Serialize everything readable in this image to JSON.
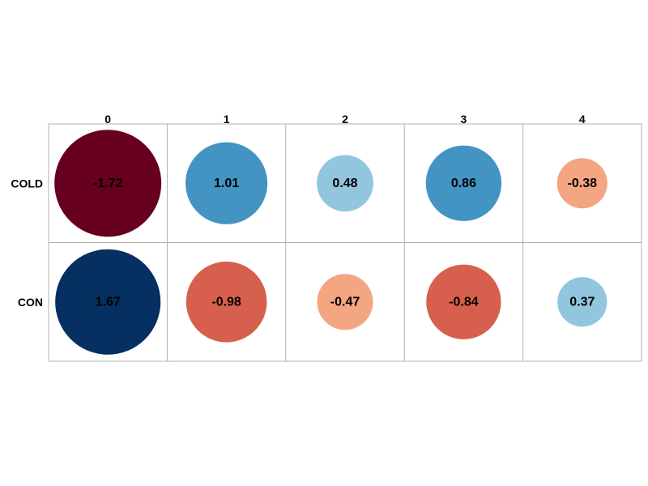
{
  "chart_data": {
    "type": "heatmap",
    "title": "",
    "columns": [
      "0",
      "1",
      "2",
      "3",
      "4"
    ],
    "rows": [
      "COLD",
      "CON"
    ],
    "values": [
      [
        -1.72,
        1.01,
        0.48,
        0.86,
        -0.38
      ],
      [
        1.67,
        -0.98,
        -0.47,
        -0.84,
        0.37
      ]
    ],
    "value_labels": [
      [
        "-1.72",
        "1.01",
        "0.48",
        "0.86",
        "-0.38"
      ],
      [
        "1.67",
        "-0.98",
        "-0.47",
        "-0.84",
        "0.37"
      ]
    ],
    "colormap": "diverging red-blue (negative red, positive blue)",
    "colors": {
      "neg_strong": "#67001f",
      "neg_mid": "#d6604d",
      "neg_light": "#f4a582",
      "pos_light": "#92c5de",
      "pos_mid": "#4393c3",
      "pos_strong": "#053061",
      "grid": "#b0b0b0"
    },
    "marker": "circle sized by |value|"
  }
}
